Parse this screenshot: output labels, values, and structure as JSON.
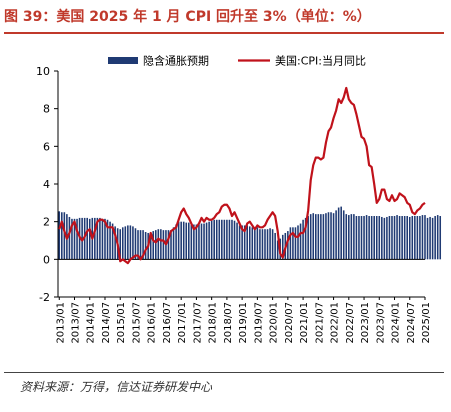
{
  "title": "图 39：美国 2025 年 1 月 CPI 回升至 3%（单位：%）",
  "source": "资料来源：万得，信达证券研发中心",
  "chart_data": {
    "type": "bar",
    "ylim": [
      -2,
      10
    ],
    "yticks": [
      -2,
      0,
      2,
      4,
      6,
      8,
      10
    ],
    "x_tick_labels": [
      "2013/01",
      "2013/07",
      "2014/01",
      "2014/07",
      "2015/01",
      "2015/07",
      "2016/01",
      "2016/07",
      "2017/01",
      "2017/07",
      "2018/01",
      "2018/07",
      "2019/01",
      "2019/07",
      "2020/01",
      "2020/07",
      "2021/01",
      "2021/07",
      "2022/01",
      "2022/07",
      "2023/01",
      "2023/07",
      "2024/01",
      "2024/07",
      "2025/01"
    ],
    "legend_position": "top",
    "grid": false,
    "colors": {
      "bars": "#1f3a73",
      "line": "#c0121b",
      "title": "#c0392b"
    },
    "series": [
      {
        "name": "隐含通胀预期",
        "type": "bar",
        "x_start": "2013/01",
        "frequency": "monthly",
        "values": [
          2.55,
          2.5,
          2.5,
          2.4,
          2.25,
          2.15,
          2.15,
          2.15,
          2.2,
          2.2,
          2.2,
          2.2,
          2.15,
          2.2,
          2.2,
          2.2,
          2.2,
          2.15,
          2.15,
          2.1,
          2.0,
          1.9,
          1.75,
          1.65,
          1.6,
          1.7,
          1.75,
          1.8,
          1.8,
          1.75,
          1.65,
          1.55,
          1.55,
          1.55,
          1.45,
          1.4,
          1.3,
          1.5,
          1.55,
          1.6,
          1.6,
          1.55,
          1.55,
          1.55,
          1.55,
          1.7,
          1.85,
          2.0,
          2.0,
          2.0,
          1.95,
          1.95,
          1.9,
          1.85,
          1.85,
          1.85,
          1.9,
          1.9,
          1.95,
          2.0,
          2.05,
          2.1,
          2.1,
          2.1,
          2.1,
          2.1,
          2.1,
          2.1,
          2.1,
          2.05,
          1.95,
          1.8,
          1.8,
          1.8,
          1.8,
          1.75,
          1.7,
          1.7,
          1.7,
          1.6,
          1.6,
          1.6,
          1.6,
          1.65,
          1.6,
          1.4,
          1.0,
          1.1,
          1.3,
          1.4,
          1.5,
          1.7,
          1.7,
          1.7,
          1.8,
          1.9,
          2.1,
          2.2,
          2.3,
          2.4,
          2.45,
          2.4,
          2.4,
          2.4,
          2.4,
          2.45,
          2.5,
          2.5,
          2.45,
          2.6,
          2.75,
          2.8,
          2.6,
          2.4,
          2.35,
          2.4,
          2.4,
          2.3,
          2.3,
          2.3,
          2.3,
          2.35,
          2.3,
          2.3,
          2.3,
          2.3,
          2.3,
          2.25,
          2.2,
          2.25,
          2.3,
          2.3,
          2.3,
          2.35,
          2.3,
          2.3,
          2.3,
          2.3,
          2.25,
          2.3,
          2.3,
          2.3,
          2.3,
          2.35,
          2.35,
          2.2,
          2.25,
          2.2,
          2.3,
          2.35,
          2.3
        ]
      },
      {
        "name": "美国:CPI:当月同比",
        "type": "line",
        "x_start": "2013/01",
        "frequency": "monthly",
        "values": [
          1.6,
          2.0,
          1.5,
          1.1,
          1.4,
          1.8,
          2.0,
          1.5,
          1.2,
          1.0,
          1.2,
          1.5,
          1.6,
          1.1,
          1.5,
          2.0,
          2.1,
          2.1,
          2.0,
          1.7,
          1.7,
          1.7,
          1.3,
          0.8,
          -0.1,
          0.0,
          -0.1,
          -0.2,
          0.0,
          0.1,
          0.2,
          0.2,
          0.0,
          0.2,
          0.5,
          0.7,
          1.4,
          1.0,
          0.9,
          1.1,
          1.0,
          1.0,
          0.8,
          1.1,
          1.5,
          1.6,
          1.7,
          2.1,
          2.5,
          2.7,
          2.4,
          2.2,
          1.9,
          1.6,
          1.7,
          1.9,
          2.2,
          2.0,
          2.2,
          2.1,
          2.1,
          2.2,
          2.4,
          2.5,
          2.8,
          2.9,
          2.9,
          2.7,
          2.3,
          2.5,
          2.2,
          1.9,
          1.6,
          1.5,
          1.9,
          2.0,
          1.8,
          1.6,
          1.8,
          1.7,
          1.7,
          1.8,
          2.1,
          2.3,
          2.5,
          2.3,
          1.5,
          0.3,
          0.1,
          0.6,
          1.0,
          1.3,
          1.4,
          1.2,
          1.2,
          1.4,
          1.4,
          1.7,
          2.6,
          4.2,
          5.0,
          5.4,
          5.4,
          5.3,
          5.4,
          6.2,
          6.8,
          7.0,
          7.5,
          7.9,
          8.5,
          8.3,
          8.6,
          9.1,
          8.5,
          8.3,
          8.2,
          7.7,
          7.1,
          6.5,
          6.4,
          6.0,
          5.0,
          4.9,
          4.0,
          3.0,
          3.2,
          3.7,
          3.7,
          3.2,
          3.1,
          3.4,
          3.1,
          3.2,
          3.5,
          3.4,
          3.3,
          3.0,
          2.9,
          2.5,
          2.4,
          2.6,
          2.7,
          2.9,
          3.0
        ]
      }
    ]
  }
}
